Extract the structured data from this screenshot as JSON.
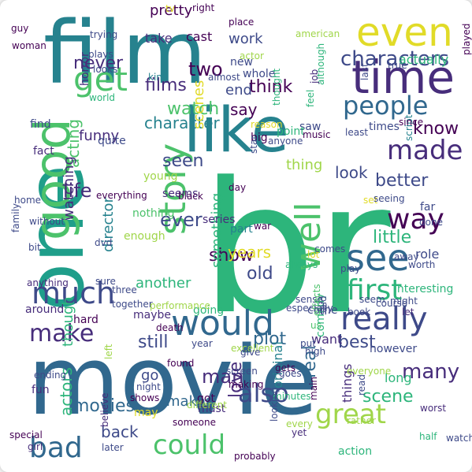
{
  "palette": {
    "yellow": "#e1db28",
    "lime": "#a0d64a",
    "green": "#4cc26b",
    "teal": "#2db57b",
    "sea": "#1f9e8a",
    "cyan": "#26828e",
    "blue": "#31688e",
    "indigo": "#3e4a89",
    "purple": "#472d7b",
    "violet": "#440154"
  },
  "words": [
    {
      "text": "br",
      "c": "teal"
    },
    {
      "text": "movie",
      "c": "blue"
    },
    {
      "text": "film",
      "c": "cyan"
    },
    {
      "text": "one",
      "c": "sea"
    },
    {
      "text": "like",
      "c": "cyan"
    },
    {
      "text": "time",
      "c": "purple"
    },
    {
      "text": "even",
      "c": "yellow"
    },
    {
      "text": "good",
      "c": "green"
    },
    {
      "text": "would",
      "c": "blue"
    },
    {
      "text": "really",
      "c": "indigo"
    },
    {
      "text": "story",
      "c": "green"
    },
    {
      "text": "see",
      "c": "blue"
    },
    {
      "text": "well",
      "c": "green"
    },
    {
      "text": "much",
      "c": "indigo"
    },
    {
      "text": "get",
      "c": "green"
    },
    {
      "text": "made",
      "c": "purple"
    },
    {
      "text": "people",
      "c": "blue"
    },
    {
      "text": "first",
      "c": "teal"
    },
    {
      "text": "great",
      "c": "lime"
    },
    {
      "text": "also",
      "c": "indigo"
    },
    {
      "text": "bad",
      "c": "blue"
    },
    {
      "text": "could",
      "c": "green"
    },
    {
      "text": "make",
      "c": "purple"
    },
    {
      "text": "way",
      "c": "violet"
    },
    {
      "text": "characters",
      "c": "indigo"
    },
    {
      "text": "watch",
      "c": "green"
    },
    {
      "text": "films",
      "c": "purple"
    },
    {
      "text": "character",
      "c": "cyan"
    },
    {
      "text": "two",
      "c": "violet"
    },
    {
      "text": "think",
      "c": "violet"
    },
    {
      "text": "many",
      "c": "purple"
    },
    {
      "text": "seen",
      "c": "indigo"
    },
    {
      "text": "never",
      "c": "purple"
    },
    {
      "text": "acting",
      "c": "green"
    },
    {
      "text": "plot",
      "c": "blue"
    },
    {
      "text": "love",
      "c": "purple"
    },
    {
      "text": "show",
      "c": "violet"
    },
    {
      "text": "little",
      "c": "teal"
    },
    {
      "text": "best",
      "c": "indigo"
    },
    {
      "text": "ever",
      "c": "indigo"
    },
    {
      "text": "life",
      "c": "purple"
    },
    {
      "text": "movies",
      "c": "blue"
    },
    {
      "text": "know",
      "c": "violet"
    },
    {
      "text": "better",
      "c": "indigo"
    },
    {
      "text": "still",
      "c": "indigo"
    },
    {
      "text": "scenes",
      "c": "yellow"
    },
    {
      "text": "end",
      "c": "indigo"
    },
    {
      "text": "man",
      "c": "purple"
    },
    {
      "text": "scene",
      "c": "teal"
    },
    {
      "text": "back",
      "c": "indigo"
    },
    {
      "text": "say",
      "c": "violet"
    },
    {
      "text": "funny",
      "c": "purple"
    },
    {
      "text": "look",
      "c": "indigo"
    },
    {
      "text": "real",
      "c": "blue"
    },
    {
      "text": "thing",
      "c": "lime"
    },
    {
      "text": "actors",
      "c": "teal"
    },
    {
      "text": "watching",
      "c": "purple"
    },
    {
      "text": "something",
      "c": "teal"
    },
    {
      "text": "work",
      "c": "indigo"
    },
    {
      "text": "years",
      "c": "yellow"
    },
    {
      "text": "director",
      "c": "cyan"
    },
    {
      "text": "though",
      "c": "teal"
    },
    {
      "text": "old",
      "c": "indigo"
    },
    {
      "text": "makes",
      "c": "blue"
    },
    {
      "text": "another",
      "c": "teal"
    },
    {
      "text": "go",
      "c": "indigo"
    },
    {
      "text": "things",
      "c": "purple"
    },
    {
      "text": "actually",
      "c": "teal"
    },
    {
      "text": "pretty",
      "c": "violet"
    },
    {
      "text": "long",
      "c": "teal"
    },
    {
      "text": "original",
      "c": "cyan"
    },
    {
      "text": "new",
      "c": "indigo"
    },
    {
      "text": "cast",
      "c": "violet"
    },
    {
      "text": "take",
      "c": "purple"
    },
    {
      "text": "whole",
      "c": "indigo"
    },
    {
      "text": "want",
      "c": "purple"
    },
    {
      "text": "however",
      "c": "indigo"
    },
    {
      "text": "part",
      "c": "cyan"
    },
    {
      "text": "role",
      "c": "indigo"
    },
    {
      "text": "find",
      "c": "indigo"
    },
    {
      "text": "quite",
      "c": "indigo"
    },
    {
      "text": "young",
      "c": "lime"
    },
    {
      "text": "seems",
      "c": "purple"
    },
    {
      "text": "horror",
      "c": "purple"
    },
    {
      "text": "fact",
      "c": "purple"
    },
    {
      "text": "world",
      "c": "teal"
    },
    {
      "text": "thought",
      "c": "teal"
    },
    {
      "text": "big",
      "c": "violet"
    },
    {
      "text": "times",
      "c": "indigo"
    },
    {
      "text": "saw",
      "c": "indigo"
    },
    {
      "text": "script",
      "c": "cyan"
    },
    {
      "text": "point",
      "c": "teal"
    },
    {
      "text": "series",
      "c": "purple"
    },
    {
      "text": "nothing",
      "c": "green"
    },
    {
      "text": "enough",
      "c": "lime"
    },
    {
      "text": "lot",
      "c": "yellow"
    },
    {
      "text": "far",
      "c": "indigo"
    },
    {
      "text": "done",
      "c": "indigo"
    },
    {
      "text": "interesting",
      "c": "teal"
    },
    {
      "text": "comes",
      "c": "indigo"
    },
    {
      "text": "play",
      "c": "indigo"
    },
    {
      "text": "worst",
      "c": "purple"
    },
    {
      "text": "fun",
      "c": "purple"
    },
    {
      "text": "must",
      "c": "purple"
    },
    {
      "text": "got",
      "c": "violet"
    },
    {
      "text": "may",
      "c": "yellow"
    },
    {
      "text": "every",
      "c": "lime"
    },
    {
      "text": "action",
      "c": "teal"
    },
    {
      "text": "half",
      "c": "teal"
    },
    {
      "text": "watched",
      "c": "indigo"
    },
    {
      "text": "comedy",
      "c": "teal"
    },
    {
      "text": "around",
      "c": "purple"
    },
    {
      "text": "going",
      "c": "teal"
    },
    {
      "text": "three",
      "c": "indigo"
    },
    {
      "text": "maybe",
      "c": "purple"
    },
    {
      "text": "might",
      "c": "indigo"
    },
    {
      "text": "performance",
      "c": "lime"
    },
    {
      "text": "hard",
      "c": "violet"
    },
    {
      "text": "come",
      "c": "indigo"
    },
    {
      "text": "course",
      "c": "indigo"
    },
    {
      "text": "book",
      "c": "indigo"
    },
    {
      "text": "let",
      "c": "purple"
    },
    {
      "text": "worth",
      "c": "indigo"
    },
    {
      "text": "away",
      "c": "indigo"
    },
    {
      "text": "since",
      "c": "violet"
    },
    {
      "text": "true",
      "c": "indigo"
    },
    {
      "text": "played",
      "c": "violet"
    },
    {
      "text": "last",
      "c": "indigo"
    },
    {
      "text": "although",
      "c": "teal"
    },
    {
      "text": "job",
      "c": "purple"
    },
    {
      "text": "feel",
      "c": "teal"
    },
    {
      "text": "place",
      "c": "violet"
    },
    {
      "text": "american",
      "c": "lime"
    },
    {
      "text": "actor",
      "c": "lime"
    },
    {
      "text": "right",
      "c": "violet"
    },
    {
      "text": "guy",
      "c": "violet"
    },
    {
      "text": "woman",
      "c": "violet"
    },
    {
      "text": "plays",
      "c": "indigo"
    },
    {
      "text": "trying",
      "c": "indigo"
    },
    {
      "text": "looks",
      "c": "indigo"
    },
    {
      "text": "kind",
      "c": "cyan"
    },
    {
      "text": "almost",
      "c": "indigo"
    },
    {
      "text": "reason",
      "c": "yellow"
    },
    {
      "text": "anyone",
      "c": "indigo"
    },
    {
      "text": "star",
      "c": "indigo"
    },
    {
      "text": "music",
      "c": "violet"
    },
    {
      "text": "day",
      "c": "violet"
    },
    {
      "text": "least",
      "c": "indigo"
    },
    {
      "text": "set",
      "c": "yellow"
    },
    {
      "text": "seeing",
      "c": "indigo"
    },
    {
      "text": "home",
      "c": "indigo"
    },
    {
      "text": "everything",
      "c": "violet"
    },
    {
      "text": "black",
      "c": "violet"
    },
    {
      "text": "family",
      "c": "indigo"
    },
    {
      "text": "without",
      "c": "indigo"
    },
    {
      "text": "bit",
      "c": "indigo"
    },
    {
      "text": "dvd",
      "c": "indigo"
    },
    {
      "text": "tv",
      "c": "yellow"
    },
    {
      "text": "war",
      "c": "violet"
    },
    {
      "text": "always",
      "c": "teal"
    },
    {
      "text": "sense",
      "c": "indigo"
    },
    {
      "text": "said",
      "c": "indigo"
    },
    {
      "text": "effects",
      "c": "green"
    },
    {
      "text": "anything",
      "c": "purple"
    },
    {
      "text": "sure",
      "c": "indigo"
    },
    {
      "text": "together",
      "c": "indigo"
    },
    {
      "text": "seem",
      "c": "indigo"
    },
    {
      "text": "especially",
      "c": "indigo"
    },
    {
      "text": "death",
      "c": "violet"
    },
    {
      "text": "year",
      "c": "indigo"
    },
    {
      "text": "excellent",
      "c": "lime"
    },
    {
      "text": "give",
      "c": "indigo"
    },
    {
      "text": "us",
      "c": "green"
    },
    {
      "text": "put",
      "c": "indigo"
    },
    {
      "text": "high",
      "c": "indigo"
    },
    {
      "text": "ending",
      "c": "indigo"
    },
    {
      "text": "screen",
      "c": "indigo"
    },
    {
      "text": "making",
      "c": "violet"
    },
    {
      "text": "gets",
      "c": "violet"
    },
    {
      "text": "goes",
      "c": "indigo"
    },
    {
      "text": "found",
      "c": "violet"
    },
    {
      "text": "minutes",
      "c": "teal"
    },
    {
      "text": "everyone",
      "c": "lime"
    },
    {
      "text": "left",
      "c": "lime"
    },
    {
      "text": "looking",
      "c": "indigo"
    },
    {
      "text": "read",
      "c": "indigo"
    },
    {
      "text": "night",
      "c": "indigo"
    },
    {
      "text": "shows",
      "c": "violet"
    },
    {
      "text": "different",
      "c": "lime"
    },
    {
      "text": "main",
      "c": "violet"
    },
    {
      "text": "rather",
      "c": "lime"
    },
    {
      "text": "believe",
      "c": "purple"
    },
    {
      "text": "someone",
      "c": "violet"
    },
    {
      "text": "yet",
      "c": "purple"
    },
    {
      "text": "special",
      "c": "violet"
    },
    {
      "text": "girl",
      "c": "purple"
    },
    {
      "text": "later",
      "c": "indigo"
    },
    {
      "text": "probably",
      "c": "violet"
    }
  ]
}
